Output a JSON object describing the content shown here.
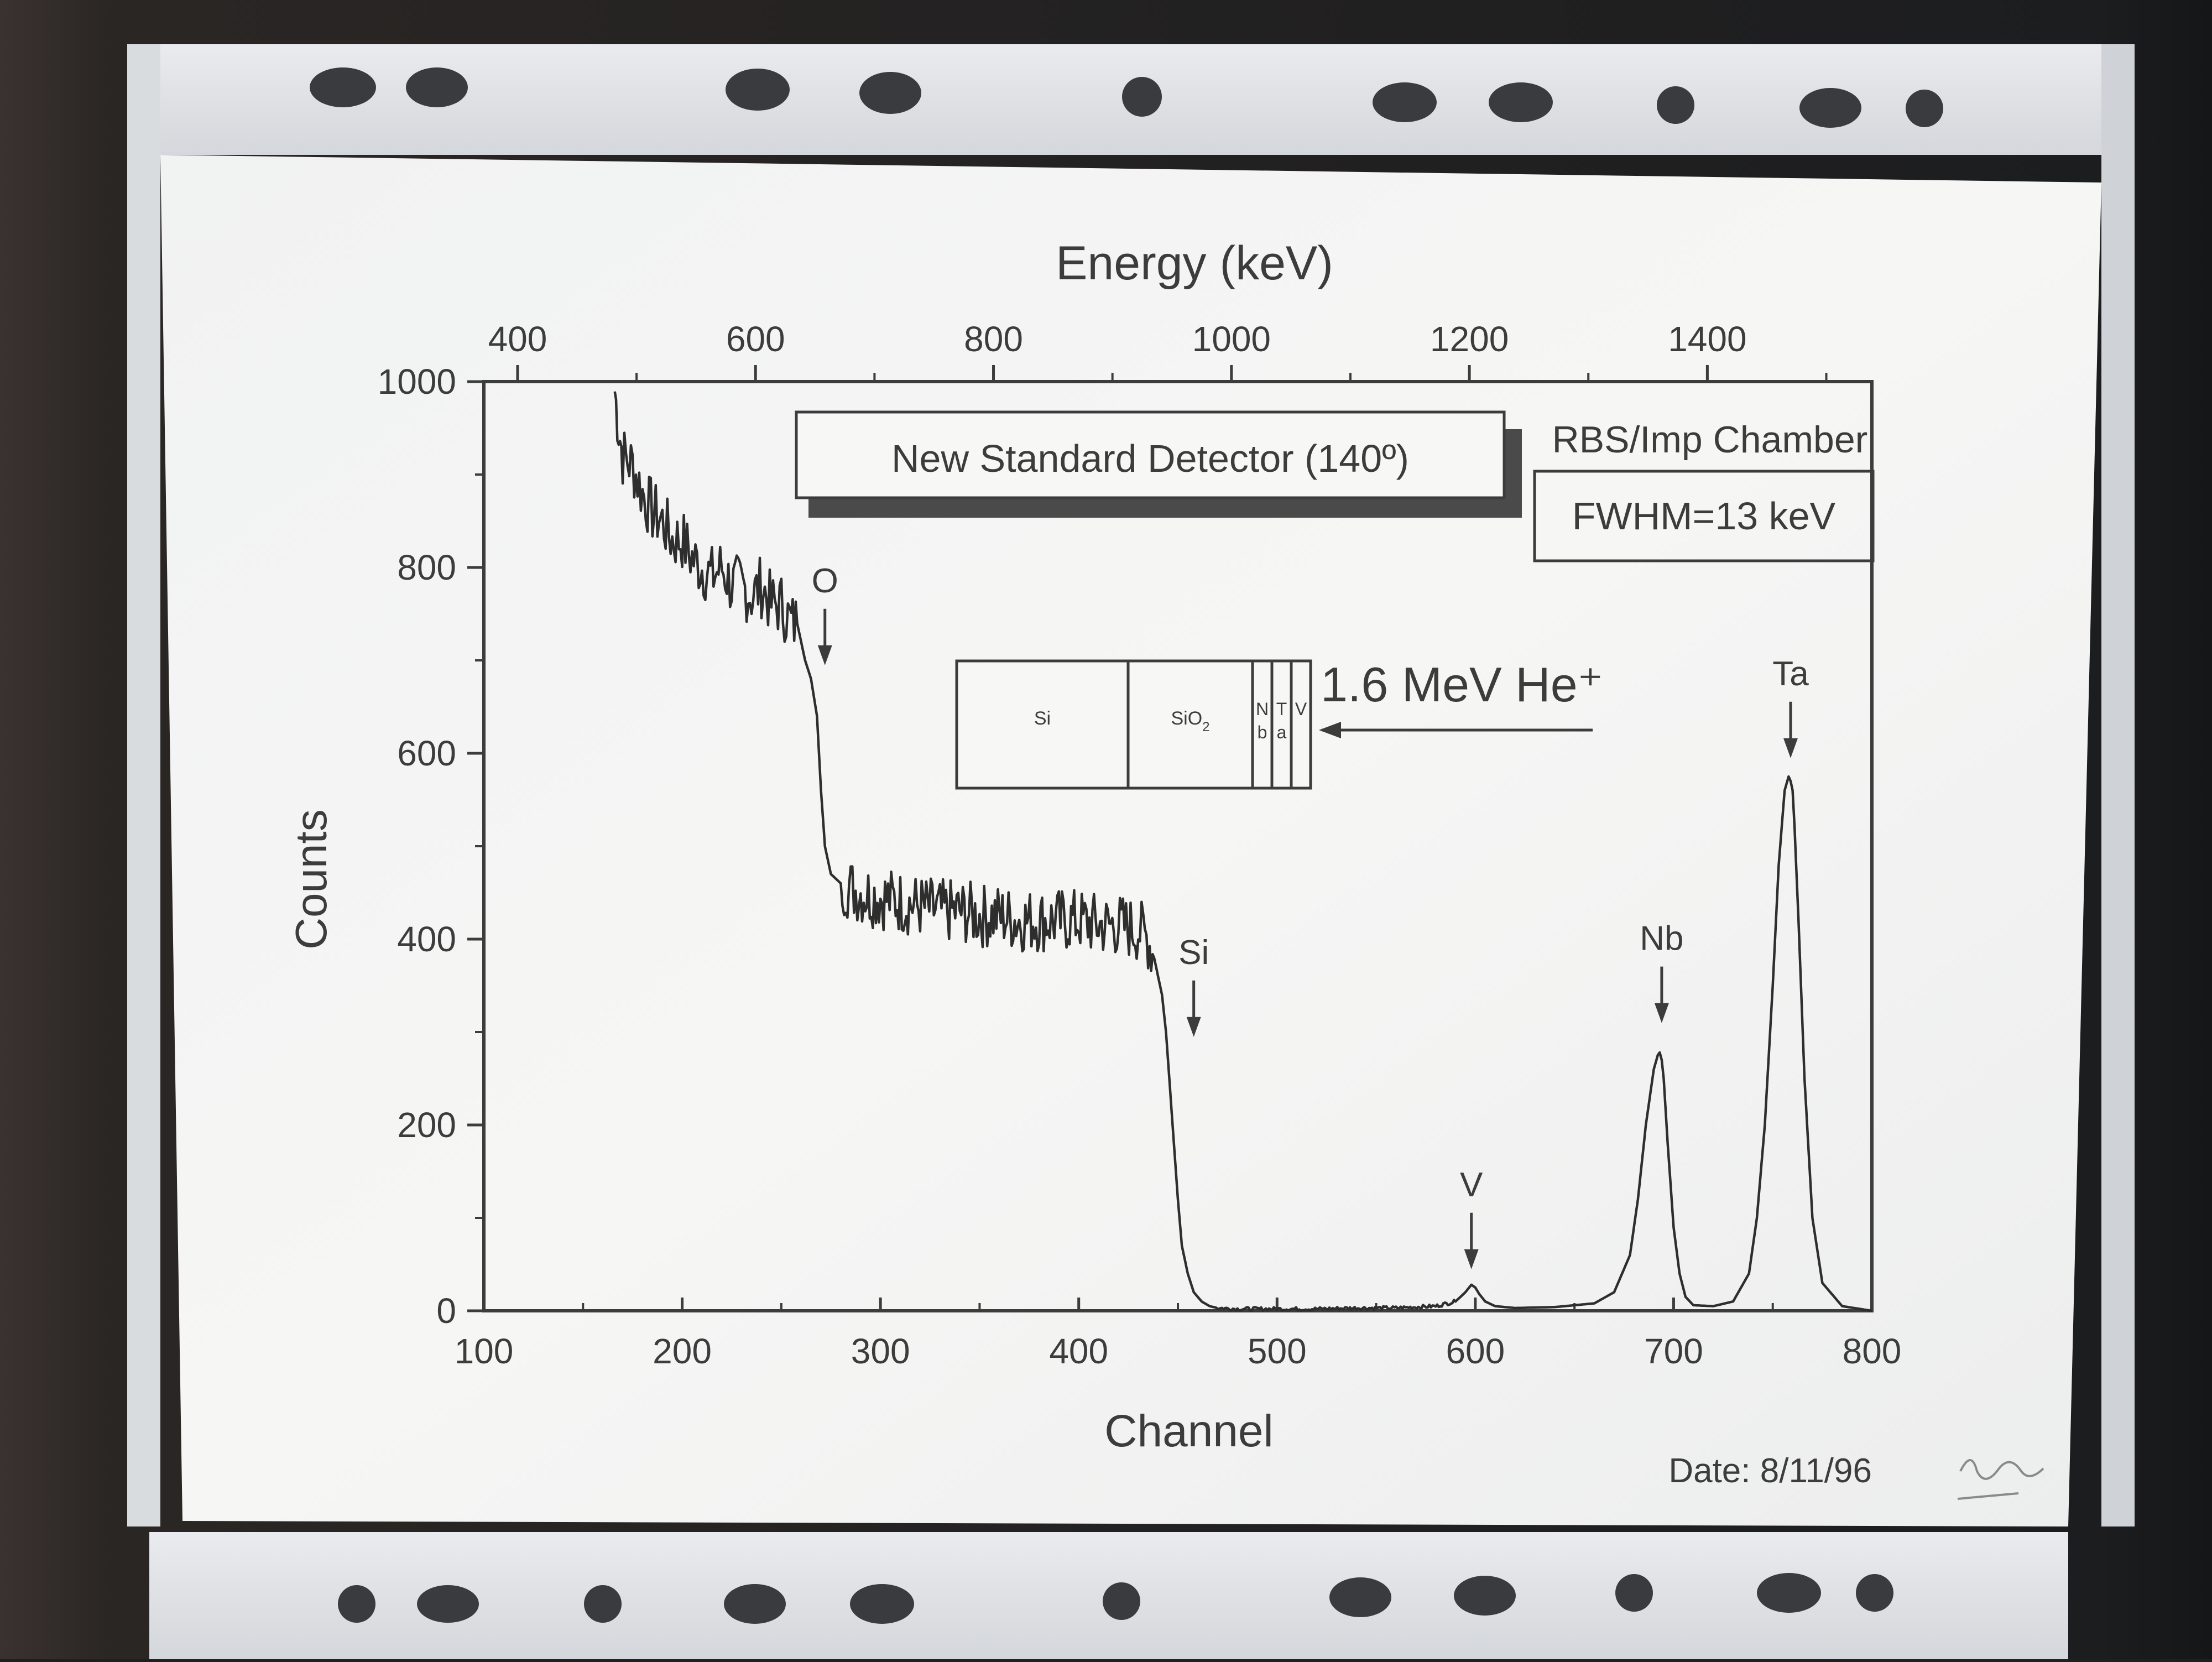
{
  "chart_data": {
    "type": "line",
    "xlabel": "Channel",
    "ylabel": "Counts",
    "top_axis_label": "Energy (keV)",
    "xlim": [
      100,
      800
    ],
    "ylim": [
      0,
      1000
    ],
    "x_ticks": [
      "100",
      "200",
      "300",
      "400",
      "500",
      "600",
      "700",
      "800"
    ],
    "y_ticks": [
      "0",
      "200",
      "400",
      "600",
      "800",
      "1000"
    ],
    "top_ticks": [
      "400",
      "600",
      "800",
      "1000",
      "1200",
      "1400"
    ],
    "top_tick_channels": [
      117,
      237,
      357,
      477,
      597,
      717
    ],
    "title_box": "New Standard Detector (140º)",
    "chamber_label": "RBS/Imp Chamber",
    "fwhm_box": "FWHM=13 keV",
    "beam_label": "1.6 MeV He⁺",
    "date_label": "Date: 8/11/96",
    "sample_layers": [
      {
        "top": "Si",
        "bottom": ""
      },
      {
        "top": "SiO",
        "bottom": "2"
      },
      {
        "top": "N",
        "bottom": "b"
      },
      {
        "top": "T",
        "bottom": "a"
      },
      {
        "top": "V",
        "bottom": ""
      }
    ],
    "annotations": [
      {
        "label": "O",
        "channel": 272,
        "counts": 690
      },
      {
        "label": "Si",
        "channel": 458,
        "counts": 290
      },
      {
        "label": "V",
        "channel": 598,
        "counts": 40
      },
      {
        "label": "Nb",
        "channel": 694,
        "counts": 305
      },
      {
        "label": "Ta",
        "channel": 759,
        "counts": 590
      }
    ],
    "series": [
      {
        "x": [
          166,
          168,
          170,
          175,
          180,
          185,
          190,
          195,
          200,
          205,
          210,
          215,
          220,
          225,
          230,
          235,
          240,
          245,
          250,
          255,
          258,
          262,
          265,
          268,
          270,
          272,
          275,
          280,
          285,
          290,
          300,
          310,
          320,
          330,
          340,
          350,
          360,
          370,
          380,
          390,
          400,
          410,
          420,
          430,
          435,
          438,
          440,
          442,
          444,
          446,
          448,
          450,
          452,
          455,
          458,
          462,
          466,
          470,
          480,
          500,
          520,
          540,
          560,
          580,
          590,
          595,
          598,
          600,
          602,
          605,
          610,
          620,
          640,
          660,
          670,
          678,
          682,
          686,
          690,
          692,
          693,
          694,
          695,
          697,
          700,
          703,
          706,
          710,
          720,
          730,
          738,
          742,
          746,
          750,
          753,
          756,
          758,
          759,
          760,
          761,
          763,
          766,
          770,
          775,
          785,
          800
        ],
        "y": [
          990,
          950,
          920,
          910,
          880,
          860,
          850,
          830,
          830,
          810,
          800,
          790,
          800,
          780,
          780,
          770,
          780,
          760,
          760,
          740,
          740,
          700,
          680,
          640,
          560,
          500,
          470,
          460,
          455,
          450,
          445,
          440,
          435,
          430,
          430,
          425,
          425,
          420,
          420,
          420,
          420,
          415,
          415,
          410,
          400,
          380,
          360,
          340,
          300,
          240,
          180,
          120,
          70,
          40,
          20,
          10,
          5,
          3,
          2,
          2,
          2,
          3,
          3,
          5,
          10,
          20,
          28,
          25,
          18,
          10,
          5,
          3,
          4,
          8,
          20,
          60,
          120,
          200,
          260,
          275,
          278,
          270,
          250,
          180,
          90,
          40,
          15,
          6,
          5,
          10,
          40,
          100,
          200,
          350,
          480,
          560,
          575,
          570,
          560,
          520,
          420,
          250,
          100,
          30,
          5,
          0
        ]
      }
    ],
    "grid": false,
    "legend": "none"
  }
}
